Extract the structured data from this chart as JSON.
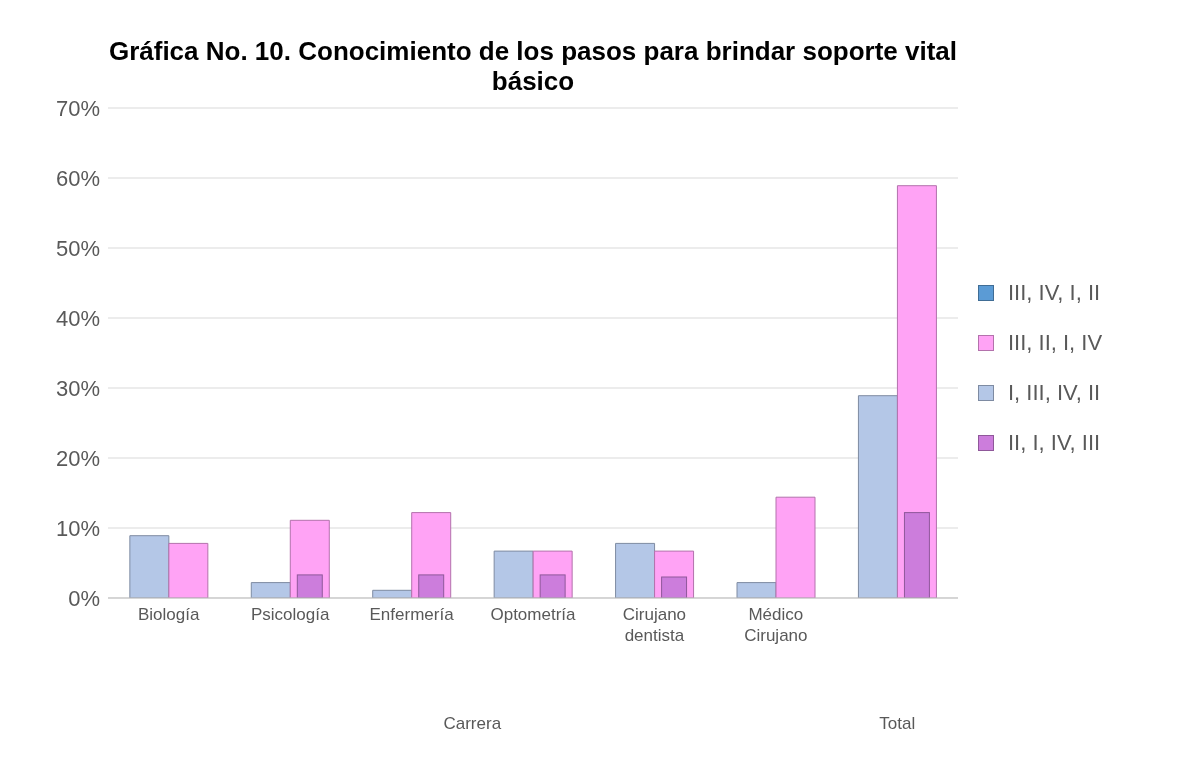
{
  "chart_data": {
    "type": "bar",
    "title": "Gráfica No. 10. Conocimiento de los pasos para brindar soporte vital básico",
    "categories": [
      "Biología",
      "Psicología",
      "Enfermería",
      "Optometría",
      "Cirujano dentista",
      "Médico Cirujano",
      null
    ],
    "series": [
      {
        "name": "III, IV, I, II",
        "color": "#5b9bd5",
        "values": [
          null,
          null,
          null,
          null,
          null,
          null,
          null
        ]
      },
      {
        "name": "III, II, I, IV",
        "color": "#ffa3f5",
        "values": [
          7.8,
          11.1,
          12.2,
          6.7,
          6.7,
          14.4,
          58.9
        ]
      },
      {
        "name": "I, III, IV, II",
        "color": "#b4c7e7",
        "values": [
          8.9,
          2.2,
          1.1,
          6.7,
          7.8,
          2.2,
          28.9
        ]
      },
      {
        "name": "II, I, IV, III",
        "color": "#cc7ddc",
        "values": [
          null,
          3.3,
          3.3,
          3.3,
          3.0,
          null,
          12.2
        ]
      }
    ],
    "ylim": [
      0,
      70
    ],
    "yticks": [
      {
        "value": 0,
        "label": "0%"
      },
      {
        "value": 10,
        "label": "10%"
      },
      {
        "value": 20,
        "label": "20%"
      },
      {
        "value": 30,
        "label": "30%"
      },
      {
        "value": 40,
        "label": "40%"
      },
      {
        "value": 50,
        "label": "50%"
      },
      {
        "value": 60,
        "label": "60%"
      },
      {
        "value": 70,
        "label": "70%"
      }
    ],
    "grid": "y",
    "legend": "right",
    "annotations": [
      "Carrera",
      "Total"
    ]
  }
}
